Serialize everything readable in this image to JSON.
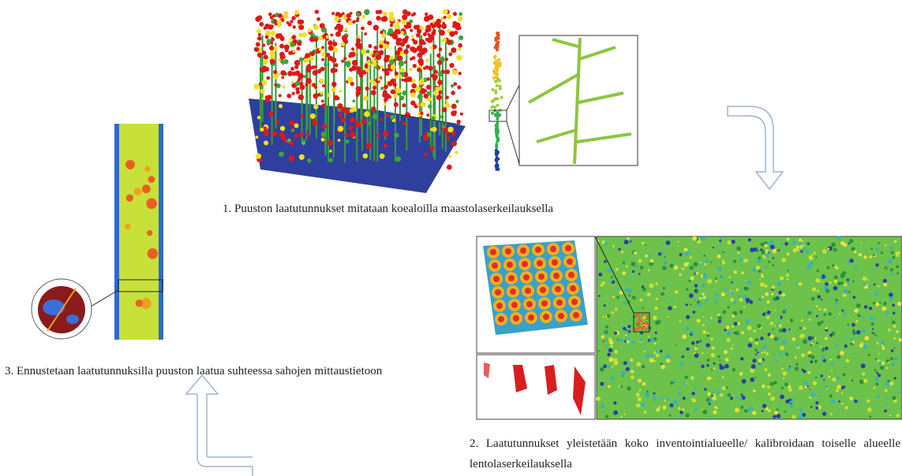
{
  "steps": [
    {
      "label": "1. Puuston laatutunnukset mitataan koealoilla maastolaserkeilauksella"
    },
    {
      "label": "2. Laatutunnukset yleistetään koko inventointialueelle/ kalibroidaan toiselle alueelle lentolaserkeilauksella"
    },
    {
      "label": "3. Ennustetaan laatutunnuksilla puuston laatua suhteessa sahojen mittaustietoon"
    }
  ]
}
